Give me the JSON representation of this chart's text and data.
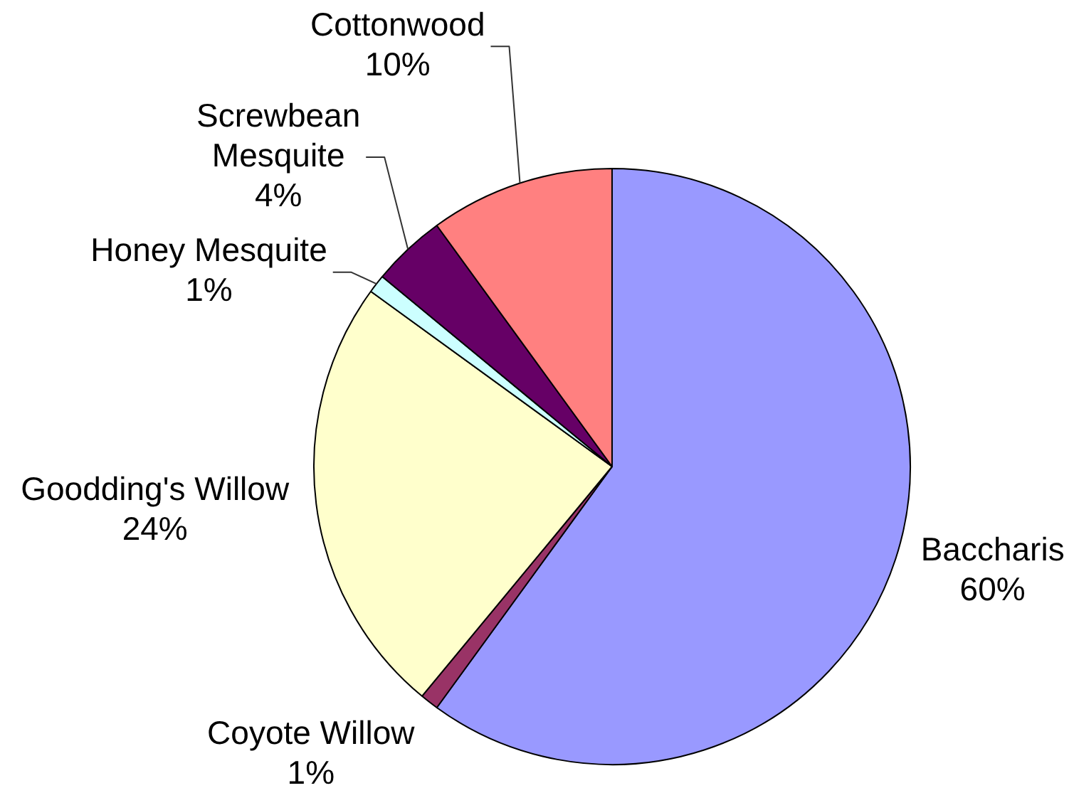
{
  "chart_data": {
    "type": "pie",
    "categories": [
      "Baccharis",
      "Coyote Willow",
      "Goodding's Willow",
      "Honey Mesquite",
      "Screwbean Mesquite",
      "Cottonwood"
    ],
    "values": [
      60,
      1,
      24,
      1,
      4,
      10
    ],
    "colors": [
      "#9999ff",
      "#993366",
      "#ffffcc",
      "#ccffff",
      "#660066",
      "#ff8080"
    ],
    "value_labels": [
      "60%",
      "1%",
      "24%",
      "1%",
      "4%",
      "10%"
    ]
  }
}
